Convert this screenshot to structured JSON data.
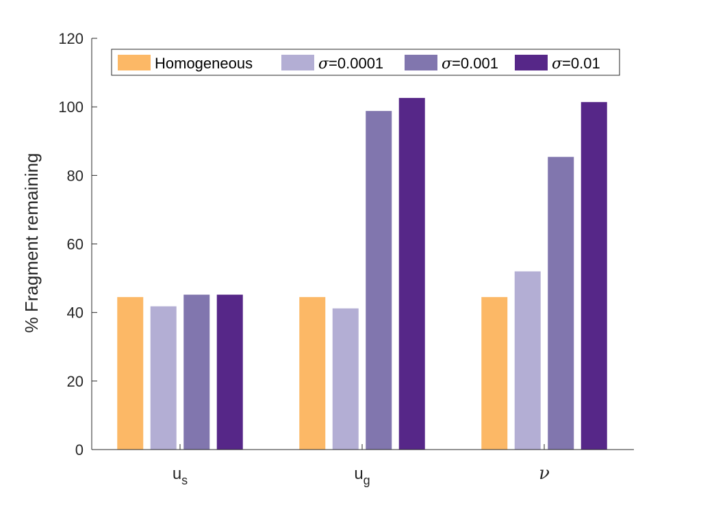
{
  "chart_data": {
    "type": "bar",
    "ylabel": "% Fragment remaining",
    "ylim": [
      0,
      120
    ],
    "yticks": [
      "0",
      "20",
      "40",
      "60",
      "80",
      "100",
      "120"
    ],
    "categories": [
      {
        "base": "u",
        "sub": "s"
      },
      {
        "base": "u",
        "sub": "g"
      },
      {
        "greek": "ν"
      }
    ],
    "series": [
      {
        "name_symbol": "",
        "name": "Homogeneous",
        "color": "#FCB866",
        "values": [
          44.5,
          44.5,
          44.5
        ]
      },
      {
        "name_symbol": "σ",
        "name": "=0.0001",
        "color": "#B3AED4",
        "values": [
          41.8,
          41.2,
          52.0
        ]
      },
      {
        "name_symbol": "σ",
        "name": "=0.001",
        "color": "#8176AE",
        "values": [
          45.2,
          98.8,
          85.4
        ]
      },
      {
        "name_symbol": "σ",
        "name": "=0.01",
        "color": "#562788",
        "values": [
          45.2,
          102.6,
          101.4
        ]
      }
    ],
    "legend_position": "top",
    "grid": false
  }
}
